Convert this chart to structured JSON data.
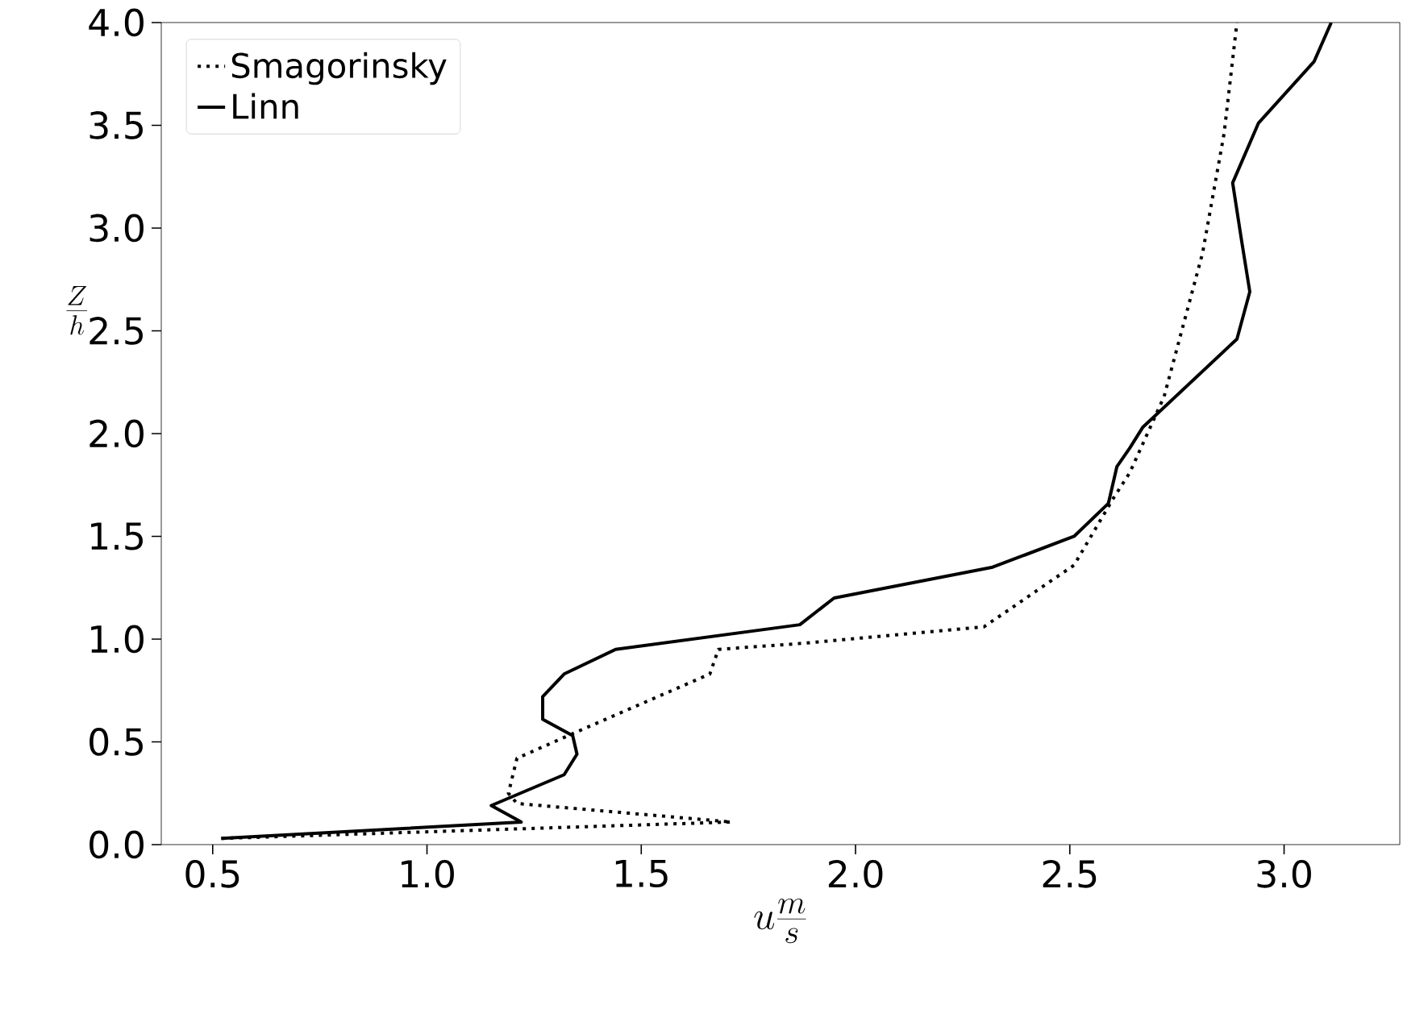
{
  "chart_data": {
    "type": "line",
    "xlabel": "u\\frac{m}{s}",
    "ylabel": "\\frac{Z}{h}",
    "xlim": [
      0.38,
      3.27
    ],
    "ylim": [
      0,
      4
    ],
    "xticks": [
      0.5,
      {
        "value": 1,
        "label": "1.0"
      },
      1.5,
      {
        "value": 2,
        "label": "2.0"
      },
      2.5,
      {
        "value": 3,
        "label": "3.0"
      }
    ],
    "yticks": [
      {
        "value": 0,
        "label": "0.0"
      },
      0.5,
      {
        "value": 1,
        "label": "1.0"
      },
      1.5,
      {
        "value": 2,
        "label": "2.0"
      },
      2.5,
      {
        "value": 3,
        "label": "3.0"
      },
      3.5,
      {
        "value": 4,
        "label": "4.0"
      }
    ],
    "grid": false,
    "legend": "top left",
    "marker": "none",
    "series": [
      {
        "name": "Smagorinsky",
        "color": "#000000",
        "line_style": "dotted",
        "x": [
          0.52,
          1.71,
          1.21,
          1.19,
          1.21,
          1.34,
          1.66,
          1.68,
          1.88,
          2.3,
          2.51,
          2.6,
          2.64,
          2.72,
          2.81,
          2.86,
          2.89
        ],
        "values": [
          0.03,
          0.11,
          0.2,
          0.25,
          0.42,
          0.54,
          0.83,
          0.95,
          0.98,
          1.06,
          1.36,
          1.68,
          1.81,
          2.18,
          2.88,
          3.46,
          4.0
        ]
      },
      {
        "name": "Linn",
        "color": "#000000",
        "line_style": "solid",
        "x": [
          0.52,
          1.22,
          1.15,
          1.32,
          1.35,
          1.34,
          1.27,
          1.27,
          1.32,
          1.44,
          1.87,
          1.95,
          2.32,
          2.51,
          2.59,
          2.61,
          2.64,
          2.67,
          2.89,
          2.92,
          2.9,
          2.88,
          2.94,
          3.07,
          3.11
        ],
        "values": [
          0.03,
          0.11,
          0.19,
          0.34,
          0.44,
          0.53,
          0.61,
          0.72,
          0.83,
          0.95,
          1.07,
          1.2,
          1.35,
          1.5,
          1.66,
          1.84,
          1.93,
          2.03,
          2.46,
          2.69,
          2.95,
          3.22,
          3.51,
          3.81,
          4.0
        ]
      }
    ]
  }
}
